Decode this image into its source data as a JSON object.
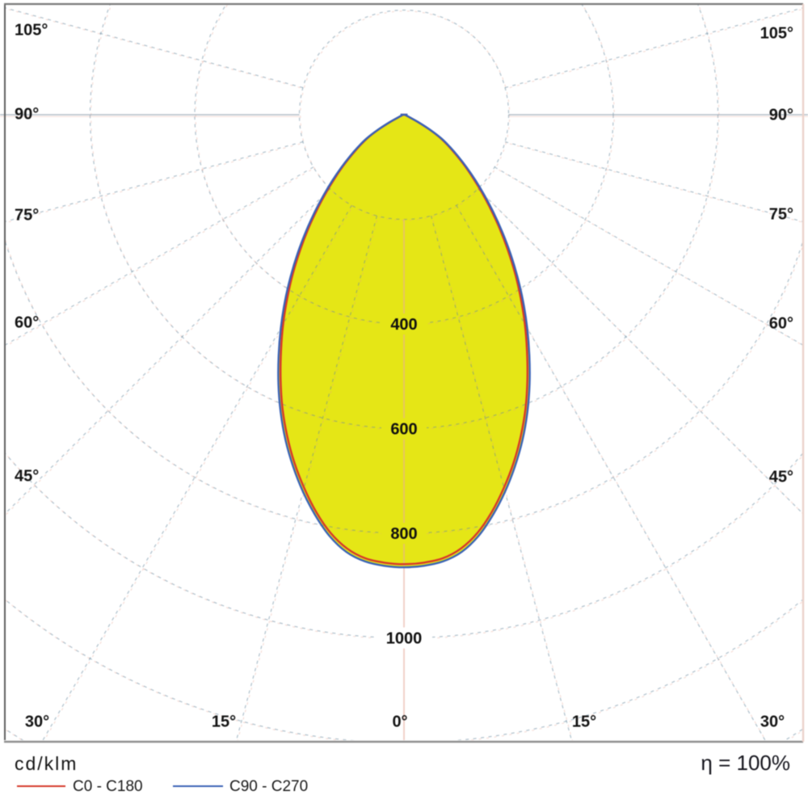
{
  "title": "Polar luminous intensity distribution diagram",
  "legend": {
    "unit_label": "cd/klm",
    "series_0_label": "C0 - C180",
    "series_1_label": "C90 - C270",
    "efficiency_label": "η = 100%"
  },
  "chart_data": {
    "type": "polar_photometric",
    "title": "",
    "radial_unit": "cd/klm",
    "efficiency": "η = 100%",
    "gamma_deg": [
      0,
      2.5,
      5,
      7.5,
      10,
      12.5,
      15,
      17.5,
      20,
      22.5,
      25,
      27.5,
      30,
      32.5,
      35,
      37.5,
      40,
      42.5,
      45,
      47.5,
      50,
      52.5,
      55,
      57.5,
      60,
      62.5,
      65,
      67.5,
      70,
      72.5,
      75,
      77.5,
      80,
      82.5,
      85,
      87.5,
      90
    ],
    "series": [
      {
        "name": "C0 - C180",
        "color": "#d6382a",
        "values": [
          859,
          857,
          851,
          836,
          811,
          777,
          738,
          697,
          653,
          607,
          558,
          509,
          462,
          415,
          370,
          326,
          285,
          246,
          211,
          179,
          151,
          125,
          103,
          82,
          55,
          29,
          12,
          7,
          4,
          4,
          4,
          4,
          4,
          4,
          4,
          4,
          4
        ]
      },
      {
        "name": "C90 - C270",
        "color": "#3a62b5",
        "values": [
          865,
          863,
          857,
          843,
          818,
          784,
          746,
          705,
          662,
          616,
          568,
          519,
          471,
          424,
          378,
          334,
          292,
          253,
          217,
          185,
          156,
          130,
          107,
          86,
          58,
          32,
          14,
          9,
          6,
          5,
          5,
          5,
          5,
          5,
          5,
          5,
          5
        ]
      }
    ],
    "fill_color": "#e5e616",
    "grid": {
      "ring_step_cdklm": 200,
      "ring_values": [
        200,
        400,
        600,
        800,
        1000,
        1200,
        1400
      ],
      "labeled_rings": [
        400,
        600,
        800,
        1000
      ],
      "ray_angles_deg": [
        0,
        15,
        30,
        45,
        60,
        75,
        90,
        105
      ],
      "blue_grid_color": "rgba(104,136,158,0.52)",
      "red_grid_color": "rgba(228,158,142,0.34)",
      "axis_h_color": "rgba(148,164,176,0.70)",
      "axis_v_color": "rgba(230,170,156,0.60)"
    },
    "angle_labels_left": [
      "105°",
      "90°",
      "75°",
      "60°",
      "45°"
    ],
    "angle_labels_right": [
      "105°",
      "90°",
      "75°",
      "60°",
      "45°"
    ],
    "angle_labels_bottom": [
      "30°",
      "15°",
      "0°",
      "15°",
      "30°"
    ],
    "ring_label_texts": [
      "400",
      "600",
      "800",
      "1000"
    ]
  }
}
